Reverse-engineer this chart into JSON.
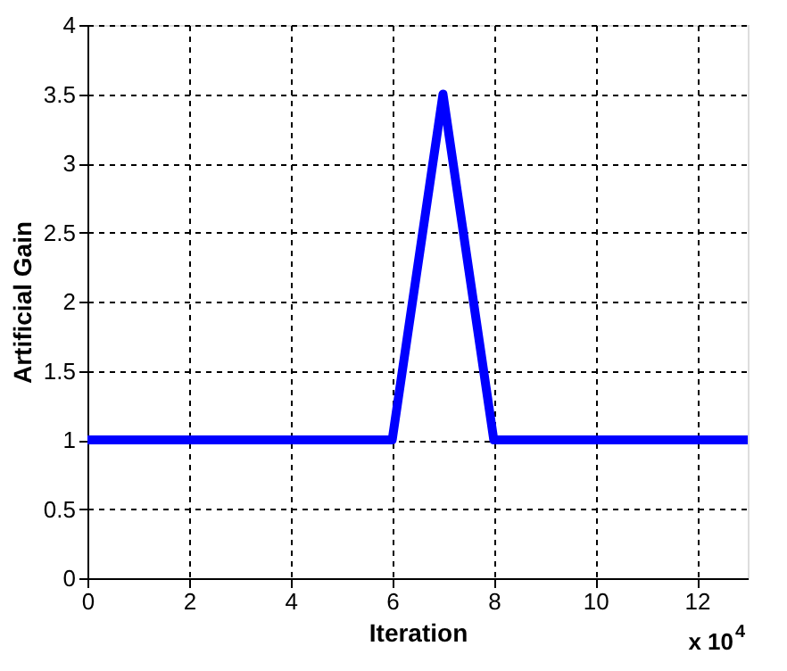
{
  "chart_data": {
    "type": "line",
    "xlabel": "Iteration",
    "ylabel": "Artificial Gain",
    "x": [
      0,
      6,
      7,
      8,
      13
    ],
    "series": [
      {
        "color": "#0000ff",
        "values": [
          1,
          1,
          3.5,
          1,
          1
        ]
      }
    ],
    "xlim": [
      0,
      13
    ],
    "xticks": [
      0,
      2,
      4,
      6,
      8,
      10,
      12
    ],
    "ylim": [
      0,
      4
    ],
    "yticks": [
      0,
      0.5,
      1,
      1.5,
      2,
      2.5,
      3,
      3.5,
      4
    ],
    "grid": true,
    "line_style": "solid",
    "marker": "none",
    "annotations": [
      "x 10$^{4}$"
    ]
  }
}
